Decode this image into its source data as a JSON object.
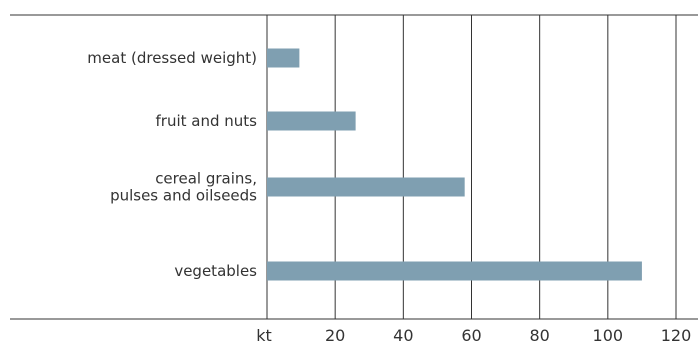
{
  "chart_data": {
    "type": "bar",
    "orientation": "horizontal",
    "categories": [
      [
        "meat (dressed weight)"
      ],
      [
        "fruit and nuts"
      ],
      [
        "cereal grains,",
        "pulses and oilseeds"
      ],
      [
        "vegetables"
      ]
    ],
    "values": [
      9.5,
      26,
      58,
      110
    ],
    "xlim": [
      0,
      120
    ],
    "xticks": [
      20,
      40,
      60,
      80,
      100,
      120
    ],
    "unit_label": "kt",
    "grid": "vertical",
    "colors": {
      "bar": "#7f9fb1",
      "grid": "#333333",
      "axis": "#333333"
    }
  }
}
